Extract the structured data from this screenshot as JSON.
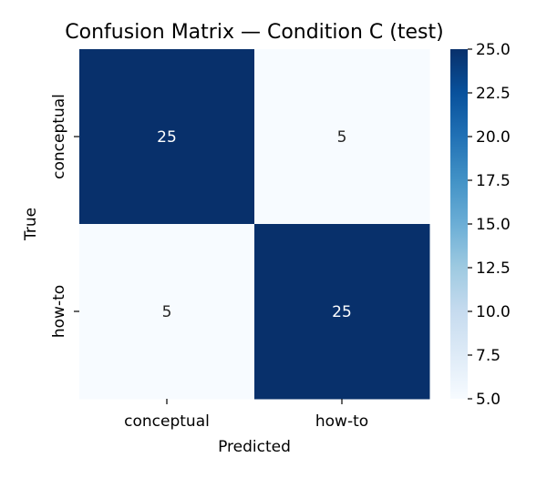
{
  "chart_data": {
    "type": "heatmap",
    "title": "Confusion Matrix — Condition C (test)",
    "xlabel": "Predicted",
    "ylabel": "True",
    "x_categories": [
      "conceptual",
      "how-to"
    ],
    "y_categories": [
      "conceptual",
      "how-to"
    ],
    "values": [
      [
        25,
        5
      ],
      [
        5,
        25
      ]
    ],
    "annotations": true,
    "colormap": "Blues",
    "colorbar": {
      "range": [
        5.0,
        25.0
      ],
      "ticks": [
        "5.0",
        "7.5",
        "10.0",
        "12.5",
        "15.0",
        "17.5",
        "20.0",
        "22.5",
        "25.0"
      ]
    },
    "colors": {
      "low": "#f7fbff",
      "high": "#08306b",
      "annotation_on_dark": "#ffffff",
      "annotation_on_light": "#262626"
    }
  }
}
